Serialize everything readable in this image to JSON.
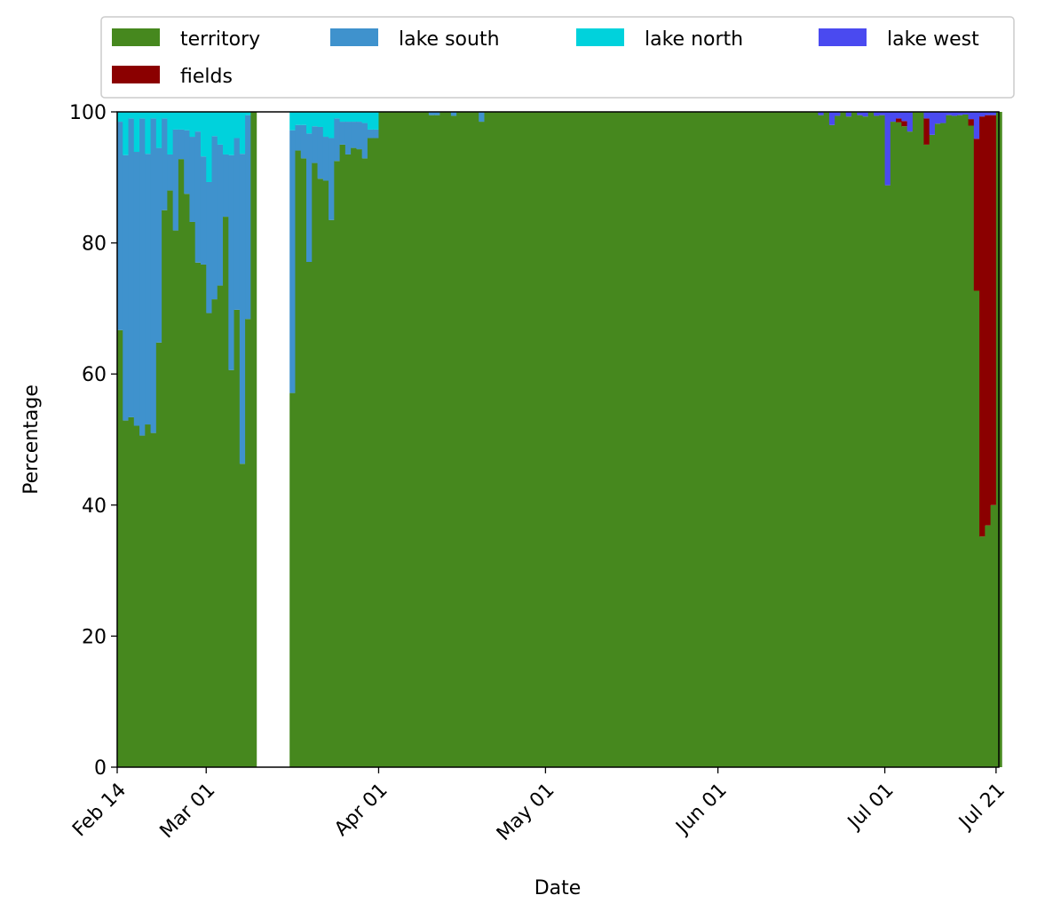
{
  "chart_data": {
    "type": "bar",
    "stacked": true,
    "xlabel": "Date",
    "ylabel": "Percentage",
    "ylim": [
      0,
      100
    ],
    "yticks": [
      0,
      20,
      40,
      60,
      80,
      100
    ],
    "x_range": [
      "2024-02-14",
      "2024-07-21"
    ],
    "x_tick_dates": [
      "2024-02-14",
      "2024-03-01",
      "2024-04-01",
      "2024-05-01",
      "2024-06-01",
      "2024-07-01",
      "2024-07-21"
    ],
    "x_tick_labels": [
      "Feb 14",
      "Mar 01",
      "Apr 01",
      "May 01",
      "Jun 01",
      "Jul 01",
      "Jul 21"
    ],
    "legend_position": "top, outside plot, 4 columns",
    "series": [
      {
        "name": "territory",
        "color": "#46881e"
      },
      {
        "name": "lake south",
        "color": "#3f92cd"
      },
      {
        "name": "lake north",
        "color": "#00d2dc"
      },
      {
        "name": "lake west",
        "color": "#4a4af0"
      },
      {
        "name": "fields",
        "color": "#8b0000"
      }
    ],
    "bars": [
      {
        "date": "2024-02-14",
        "territory": 66.7,
        "lake south": 31.8,
        "lake north": 1.5
      },
      {
        "date": "2024-02-15",
        "territory": 52.9,
        "lake south": 40.5,
        "lake north": 6.6
      },
      {
        "date": "2024-02-16",
        "territory": 53.4,
        "lake south": 45.6,
        "lake north": 1.0
      },
      {
        "date": "2024-02-17",
        "territory": 52.1,
        "lake south": 41.8,
        "lake north": 6.1
      },
      {
        "date": "2024-02-18",
        "territory": 50.6,
        "lake south": 48.4,
        "lake north": 1.0
      },
      {
        "date": "2024-02-19",
        "territory": 52.3,
        "lake south": 41.3,
        "lake north": 6.4
      },
      {
        "date": "2024-02-20",
        "territory": 51.0,
        "lake south": 48.0,
        "lake north": 1.0
      },
      {
        "date": "2024-02-21",
        "territory": 64.8,
        "lake south": 29.7,
        "lake north": 5.5
      },
      {
        "date": "2024-02-22",
        "territory": 85.0,
        "lake south": 14.0,
        "lake north": 1.0
      },
      {
        "date": "2024-02-23",
        "territory": 88.0,
        "lake south": 5.5,
        "lake north": 6.5
      },
      {
        "date": "2024-02-24",
        "territory": 81.9,
        "lake south": 15.4,
        "lake north": 2.7
      },
      {
        "date": "2024-02-25",
        "territory": 92.8,
        "lake south": 4.5,
        "lake north": 2.7
      },
      {
        "date": "2024-02-26",
        "territory": 87.5,
        "lake south": 9.7,
        "lake north": 2.8
      },
      {
        "date": "2024-02-27",
        "territory": 83.2,
        "lake south": 13.0,
        "lake north": 3.8
      },
      {
        "date": "2024-02-28",
        "territory": 77.0,
        "lake south": 20.0,
        "lake north": 3.0
      },
      {
        "date": "2024-02-29",
        "territory": 76.7,
        "lake south": 16.5,
        "lake north": 6.8
      },
      {
        "date": "2024-03-01",
        "territory": 69.3,
        "lake south": 20.0,
        "lake north": 10.7
      },
      {
        "date": "2024-03-02",
        "territory": 71.4,
        "lake south": 24.9,
        "lake north": 3.7
      },
      {
        "date": "2024-03-03",
        "territory": 73.5,
        "lake south": 21.5,
        "lake north": 5.0
      },
      {
        "date": "2024-03-04",
        "territory": 84.0,
        "lake south": 9.5,
        "lake north": 6.5
      },
      {
        "date": "2024-03-05",
        "territory": 60.6,
        "lake south": 32.8,
        "lake north": 6.6
      },
      {
        "date": "2024-03-06",
        "territory": 69.8,
        "lake south": 26.2,
        "lake north": 4.0
      },
      {
        "date": "2024-03-07",
        "territory": 46.3,
        "lake south": 47.3,
        "lake north": 6.4
      },
      {
        "date": "2024-03-08",
        "territory": 68.4,
        "lake south": 31.1,
        "lake north": 0.5
      },
      {
        "date": "2024-03-09",
        "territory": 100
      },
      {
        "date": "2024-03-16",
        "territory": 57.1,
        "lake south": 40.1,
        "lake north": 2.8
      },
      {
        "date": "2024-03-17",
        "territory": 94.1,
        "lake south": 3.9,
        "lake north": 2.0
      },
      {
        "date": "2024-03-18",
        "territory": 92.9,
        "lake south": 5.1,
        "lake north": 2.0
      },
      {
        "date": "2024-03-19",
        "territory": 77.1,
        "lake south": 19.6,
        "lake north": 3.3
      },
      {
        "date": "2024-03-20",
        "territory": 92.2,
        "lake south": 5.6,
        "lake north": 2.2
      },
      {
        "date": "2024-03-21",
        "territory": 89.8,
        "lake south": 7.9,
        "lake north": 2.3
      },
      {
        "date": "2024-03-22",
        "territory": 89.5,
        "lake south": 6.7,
        "lake north": 3.8
      },
      {
        "date": "2024-03-23",
        "territory": 83.5,
        "lake south": 12.5,
        "lake north": 4.0
      },
      {
        "date": "2024-03-24",
        "territory": 92.5,
        "lake south": 6.5,
        "lake north": 1.0
      },
      {
        "date": "2024-03-25",
        "territory": 95.0,
        "lake south": 3.5,
        "lake north": 1.5
      },
      {
        "date": "2024-03-26",
        "territory": 93.5,
        "lake south": 5.0,
        "lake north": 1.5
      },
      {
        "date": "2024-03-27",
        "territory": 94.5,
        "lake south": 4.0,
        "lake north": 1.5
      },
      {
        "date": "2024-03-28",
        "territory": 94.3,
        "lake south": 4.2,
        "lake north": 1.5
      },
      {
        "date": "2024-03-29",
        "territory": 92.9,
        "lake south": 5.4,
        "lake north": 1.7
      },
      {
        "date": "2024-03-30",
        "territory": 96.0,
        "lake south": 1.3,
        "lake north": 2.7
      },
      {
        "date": "2024-03-31",
        "territory": 96.0,
        "lake south": 1.3,
        "lake north": 2.7
      },
      {
        "date": "2024-04-01",
        "territory": 100
      },
      {
        "date": "2024-04-10",
        "territory": 99.5,
        "lake south": 0.5
      },
      {
        "date": "2024-04-11",
        "territory": 99.5,
        "lake south": 0.5
      },
      {
        "date": "2024-04-14",
        "territory": 99.4,
        "lake south": 0.6
      },
      {
        "date": "2024-04-19",
        "territory": 98.5,
        "lake south": 1.5
      },
      {
        "date": "2024-06-19",
        "territory": 99.5,
        "lake west": 0.5
      },
      {
        "date": "2024-06-21",
        "territory": 98.0,
        "lake west": 2.0
      },
      {
        "date": "2024-06-22",
        "territory": 99.4,
        "lake west": 0.6
      },
      {
        "date": "2024-06-24",
        "territory": 99.3,
        "lake west": 0.7
      },
      {
        "date": "2024-06-26",
        "territory": 99.5,
        "lake west": 0.5
      },
      {
        "date": "2024-06-27",
        "territory": 99.3,
        "lake west": 0.7
      },
      {
        "date": "2024-06-29",
        "territory": 99.4,
        "lake west": 0.6
      },
      {
        "date": "2024-06-30",
        "territory": 99.5,
        "lake west": 0.5
      },
      {
        "date": "2024-07-01",
        "territory": 88.8,
        "lake west": 11.2
      },
      {
        "date": "2024-07-02",
        "territory": 98.5,
        "lake west": 1.5
      },
      {
        "date": "2024-07-03",
        "territory": 98.4,
        "lake west": 1.0,
        "fields": 0.6
      },
      {
        "date": "2024-07-04",
        "territory": 97.8,
        "fields": 0.8,
        "lake west": 1.4
      },
      {
        "date": "2024-07-05",
        "territory": 97.0,
        "lake west": 3.0
      },
      {
        "date": "2024-07-08",
        "territory": 95.0,
        "fields": 4.0,
        "lake west": 1.0
      },
      {
        "date": "2024-07-09",
        "territory": 96.5,
        "lake west": 3.5
      },
      {
        "date": "2024-07-10",
        "territory": 98.2,
        "lake west": 1.8
      },
      {
        "date": "2024-07-11",
        "territory": 98.3,
        "lake west": 1.7
      },
      {
        "date": "2024-07-12",
        "territory": 99.5,
        "lake west": 0.5
      },
      {
        "date": "2024-07-13",
        "territory": 99.4,
        "lake west": 0.6
      },
      {
        "date": "2024-07-14",
        "territory": 99.5,
        "lake west": 0.5
      },
      {
        "date": "2024-07-15",
        "territory": 99.6,
        "lake west": 0.4
      },
      {
        "date": "2024-07-16",
        "territory": 97.9,
        "fields": 1.0,
        "lake west": 1.1
      },
      {
        "date": "2024-07-17",
        "territory": 72.7,
        "fields": 23.2,
        "lake west": 4.1
      },
      {
        "date": "2024-07-18",
        "territory": 35.2,
        "fields": 64.1,
        "lake west": 0.7
      },
      {
        "date": "2024-07-19",
        "territory": 36.9,
        "fields": 62.6,
        "lake west": 0.5
      },
      {
        "date": "2024-07-20",
        "territory": 40.0,
        "fields": 59.5,
        "lake west": 0.5
      }
    ],
    "missing_dates": [
      "2024-03-10",
      "2024-03-11",
      "2024-03-12",
      "2024-03-13",
      "2024-03-14",
      "2024-03-15"
    ],
    "default_fill_series": "territory"
  }
}
